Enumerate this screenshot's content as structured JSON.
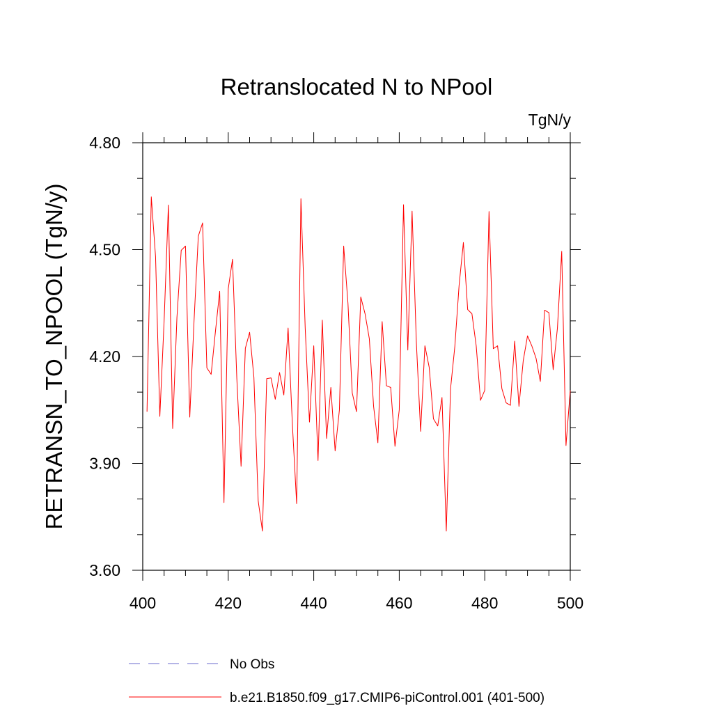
{
  "chart_data": {
    "type": "line",
    "title": "Retranslocated N to NPool",
    "units": "TgN/y",
    "ylabel": "RETRANSN_TO_NPOOL  (TgN/y)",
    "xlabel": "",
    "xlim": [
      400,
      500
    ],
    "ylim": [
      3.6,
      4.8
    ],
    "xticks": [
      400,
      420,
      440,
      460,
      480,
      500
    ],
    "xtick_labels": [
      "400",
      "420",
      "440",
      "460",
      "480",
      "500"
    ],
    "xminor_step": 5,
    "yticks": [
      3.6,
      3.9,
      4.2,
      4.5,
      4.8
    ],
    "ytick_labels": [
      "3.60",
      "3.90",
      "4.20",
      "4.50",
      "4.80"
    ],
    "yminor_step": 0.1,
    "grid": false,
    "series": [
      {
        "name": "b.e21.B1850.f09_g17.CMIP6-piControl.001 (401-500)",
        "color": "#ff0000",
        "x": [
          401,
          402,
          403,
          404,
          405,
          406,
          407,
          408,
          409,
          410,
          411,
          412,
          413,
          414,
          415,
          416,
          417,
          418,
          419,
          420,
          421,
          422,
          423,
          424,
          425,
          426,
          427,
          428,
          429,
          430,
          431,
          432,
          433,
          434,
          435,
          436,
          437,
          438,
          439,
          440,
          441,
          442,
          443,
          444,
          445,
          446,
          447,
          448,
          449,
          450,
          451,
          452,
          453,
          454,
          455,
          456,
          457,
          458,
          459,
          460,
          461,
          462,
          463,
          464,
          465,
          466,
          467,
          468,
          469,
          470,
          471,
          472,
          473,
          474,
          475,
          476,
          477,
          478,
          479,
          480,
          481,
          482,
          483,
          484,
          485,
          486,
          487,
          488,
          489,
          490,
          491,
          492,
          493,
          494,
          495,
          496,
          497,
          498,
          499,
          500
        ],
        "values": [
          4.045,
          4.648,
          4.48,
          4.032,
          4.3,
          4.625,
          3.998,
          4.31,
          4.498,
          4.51,
          4.03,
          4.3,
          4.538,
          4.575,
          4.168,
          4.15,
          4.27,
          4.383,
          3.79,
          4.39,
          4.473,
          4.14,
          3.892,
          4.223,
          4.268,
          4.142,
          3.795,
          3.71,
          4.138,
          4.14,
          4.08,
          4.155,
          4.092,
          4.28,
          4.01,
          3.787,
          4.643,
          4.28,
          4.016,
          4.23,
          3.908,
          4.302,
          3.97,
          4.113,
          3.935,
          4.05,
          4.51,
          4.35,
          4.098,
          4.045,
          4.367,
          4.32,
          4.25,
          4.06,
          3.958,
          4.298,
          4.118,
          4.113,
          3.948,
          4.05,
          4.626,
          4.218,
          4.608,
          4.24,
          3.99,
          4.23,
          4.17,
          4.025,
          4.005,
          4.085,
          3.71,
          4.11,
          4.228,
          4.4,
          4.52,
          4.332,
          4.32,
          4.23,
          4.077,
          4.105,
          4.607,
          4.222,
          4.23,
          4.11,
          4.07,
          4.063,
          4.243,
          4.06,
          4.188,
          4.258,
          4.23,
          4.195,
          4.13,
          4.33,
          4.323,
          4.163,
          4.28,
          4.495,
          3.95,
          4.105
        ]
      }
    ],
    "legend": [
      {
        "label": "No Obs",
        "style": "dashed",
        "color": "#6a6acc"
      },
      {
        "label": "b.e21.B1850.f09_g17.CMIP6-piControl.001 (401-500)",
        "style": "solid",
        "color": "#ff0000"
      }
    ]
  }
}
